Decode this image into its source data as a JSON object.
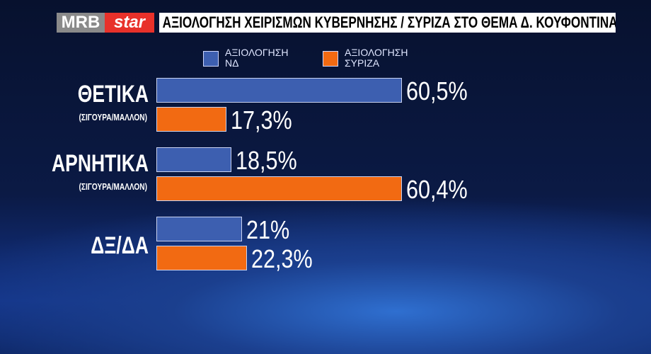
{
  "header": {
    "logo": [
      "MRB",
      "star"
    ]
  },
  "chart_data": {
    "type": "barh",
    "title": "ΑΞΙΟΛΟΓΗΣΗ  ΧΕΙΡΙΣΜΩΝ ΚΥΒΕΡΝΗΣΗΣ / ΣΥΡΙΖΑ ΣΤΟ ΘΕΜΑ Δ. ΚΟΥΦΟΝΤΙΝΑ",
    "categories": [
      "ΘΕΤΙΚΑ",
      "ΑΡΝΗΤΙΚΑ",
      "ΔΞ/ΔΑ"
    ],
    "category_notes": [
      "(ΣΙΓΟΥΡΑ/ΜΑΛΛΟΝ)",
      "(ΣΙΓΟΥΡΑ/ΜΑΛΛΟΝ)",
      null
    ],
    "series": [
      {
        "name": "ΑΞΙΟΛΟΓΗΣΗ ΝΔ",
        "color": "#3d5fb0",
        "values": [
          60.5,
          18.5,
          21
        ],
        "value_labels": [
          "60,5%",
          "18,5%",
          "21%"
        ]
      },
      {
        "name": "ΑΞΙΟΛΟΓΗΣΗ ΣΥΡΙΖΑ",
        "color": "#f26a12",
        "values": [
          17.3,
          60.4,
          22.3
        ],
        "value_labels": [
          "17,3%",
          "60,4%",
          "22,3%"
        ]
      }
    ]
  }
}
